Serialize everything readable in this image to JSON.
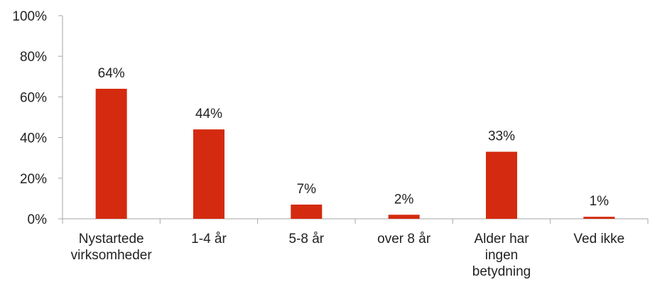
{
  "chart_data": {
    "type": "bar",
    "categories": [
      [
        "Nystartede",
        "virksomheder"
      ],
      [
        "1-4 år"
      ],
      [
        "5-8 år"
      ],
      [
        "over 8 år"
      ],
      [
        "Alder har",
        "ingen",
        "betydning"
      ],
      [
        "Ved ikke"
      ]
    ],
    "values": [
      64,
      44,
      7,
      2,
      33,
      1
    ],
    "data_labels": [
      "64%",
      "44%",
      "7%",
      "2%",
      "33%",
      "1%"
    ],
    "ylim": [
      0,
      100
    ],
    "yticks": [
      0,
      20,
      40,
      60,
      80,
      100
    ],
    "ytick_labels": [
      "0%",
      "20%",
      "40%",
      "60%",
      "80%",
      "100%"
    ],
    "title": "",
    "xlabel": "",
    "ylabel": "",
    "grid": false,
    "legend": "none",
    "bar_color": "#d42a0f",
    "axis_color": "#a6a6a6"
  }
}
